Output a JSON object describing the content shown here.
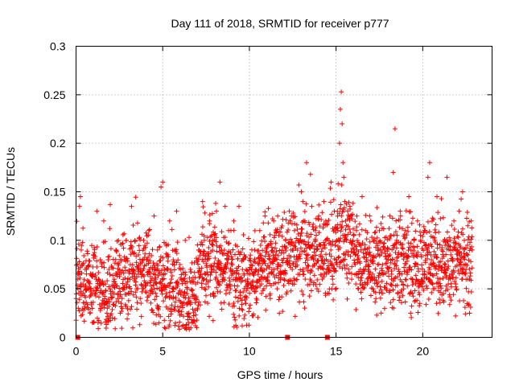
{
  "chart_data": {
    "type": "scatter",
    "title": "Day 111 of 2018, SRMTID for receiver p777",
    "xlabel": "GPS time / hours",
    "ylabel": "SRMTID / TECUs",
    "xlim": [
      0,
      24
    ],
    "ylim": [
      0,
      0.3
    ],
    "x_ticks": [
      0,
      5,
      10,
      15,
      20
    ],
    "x_tick_labels": [
      "0",
      "5",
      "10",
      "15",
      "20"
    ],
    "y_ticks": [
      0,
      0.05,
      0.1,
      0.15,
      0.2,
      0.25,
      0.3
    ],
    "y_tick_labels": [
      "0",
      "0.05",
      "0.1",
      "0.15",
      "0.2",
      "0.25",
      "0.3"
    ],
    "grid": true,
    "marker": "+",
    "color": "#ff0000",
    "series": [
      {
        "name": "SRMTID",
        "description": "dense cloud of roughly 2500 plus-markers, sampled every ~30 s; representative subset below",
        "points": [
          [
            0.0,
            0.04
          ],
          [
            0.1,
            0.06
          ],
          [
            0.2,
            0.135
          ],
          [
            0.25,
            0.145
          ],
          [
            0.3,
            0.09
          ],
          [
            0.4,
            0.055
          ],
          [
            0.5,
            0.03
          ],
          [
            0.6,
            0.07
          ],
          [
            0.7,
            0.05
          ],
          [
            0.8,
            0.025
          ],
          [
            0.9,
            0.065
          ],
          [
            1.0,
            0.085
          ],
          [
            1.1,
            0.045
          ],
          [
            1.2,
            0.13
          ],
          [
            1.3,
            0.06
          ],
          [
            1.4,
            0.08
          ],
          [
            1.5,
            0.035
          ],
          [
            1.6,
            0.12
          ],
          [
            1.7,
            0.055
          ],
          [
            1.8,
            0.03
          ],
          [
            1.9,
            0.07
          ],
          [
            2.0,
            0.045
          ],
          [
            2.1,
            0.02
          ],
          [
            2.2,
            0.06
          ],
          [
            2.3,
            0.09
          ],
          [
            2.4,
            0.04
          ],
          [
            2.5,
            0.065
          ],
          [
            2.6,
            0.035
          ],
          [
            2.7,
            0.05
          ],
          [
            2.8,
            0.08
          ],
          [
            2.9,
            0.1
          ],
          [
            3.0,
            0.06
          ],
          [
            3.1,
            0.045
          ],
          [
            3.2,
            0.135
          ],
          [
            3.3,
            0.07
          ],
          [
            3.4,
            0.1
          ],
          [
            3.5,
            0.05
          ],
          [
            3.6,
            0.085
          ],
          [
            3.7,
            0.04
          ],
          [
            3.8,
            0.065
          ],
          [
            3.9,
            0.1
          ],
          [
            4.0,
            0.055
          ],
          [
            4.1,
            0.08
          ],
          [
            4.2,
            0.11
          ],
          [
            4.3,
            0.045
          ],
          [
            4.4,
            0.07
          ],
          [
            4.5,
            0.125
          ],
          [
            4.6,
            0.06
          ],
          [
            4.7,
            0.09
          ],
          [
            4.8,
            0.05
          ],
          [
            4.9,
            0.155
          ],
          [
            5.0,
            0.16
          ],
          [
            5.1,
            0.07
          ],
          [
            5.2,
            0.045
          ],
          [
            5.3,
            0.085
          ],
          [
            5.4,
            0.12
          ],
          [
            5.5,
            0.06
          ],
          [
            5.6,
            0.04
          ],
          [
            5.7,
            0.09
          ],
          [
            5.8,
            0.13
          ],
          [
            5.9,
            0.055
          ],
          [
            6.0,
            0.075
          ],
          [
            6.1,
            0.035
          ],
          [
            6.2,
            0.06
          ],
          [
            6.3,
            0.1
          ],
          [
            6.4,
            0.045
          ],
          [
            6.5,
            0.025
          ],
          [
            6.6,
            0.07
          ],
          [
            6.7,
            0.015
          ],
          [
            6.8,
            0.04
          ],
          [
            6.9,
            0.055
          ],
          [
            7.0,
            0.03
          ],
          [
            7.1,
            0.09
          ],
          [
            7.2,
            0.065
          ],
          [
            7.3,
            0.14
          ],
          [
            7.4,
            0.1
          ],
          [
            7.5,
            0.055
          ],
          [
            7.6,
            0.08
          ],
          [
            7.7,
            0.12
          ],
          [
            7.8,
            0.07
          ],
          [
            7.9,
            0.045
          ],
          [
            8.0,
            0.105
          ],
          [
            8.1,
            0.13
          ],
          [
            8.2,
            0.075
          ],
          [
            8.3,
            0.16
          ],
          [
            8.4,
            0.09
          ],
          [
            8.5,
            0.06
          ],
          [
            8.6,
            0.135
          ],
          [
            8.7,
            0.08
          ],
          [
            8.8,
            0.11
          ],
          [
            8.9,
            0.05
          ],
          [
            9.0,
            0.075
          ],
          [
            9.1,
            0.12
          ],
          [
            9.2,
            0.095
          ],
          [
            9.3,
            0.06
          ],
          [
            9.4,
            0.135
          ],
          [
            9.5,
            0.04
          ],
          [
            9.6,
            0.07
          ],
          [
            9.7,
            0.085
          ],
          [
            9.8,
            0.035
          ],
          [
            9.9,
            0.06
          ],
          [
            10.0,
            0.03
          ],
          [
            10.1,
            0.075
          ],
          [
            10.2,
            0.05
          ],
          [
            10.3,
            0.09
          ],
          [
            10.4,
            0.04
          ],
          [
            10.5,
            0.065
          ],
          [
            10.6,
            0.11
          ],
          [
            10.7,
            0.055
          ],
          [
            10.8,
            0.08
          ],
          [
            10.9,
            0.125
          ],
          [
            11.0,
            0.06
          ],
          [
            11.1,
            0.095
          ],
          [
            11.2,
            0.045
          ],
          [
            11.3,
            0.07
          ],
          [
            11.4,
            0.12
          ],
          [
            11.5,
            0.085
          ],
          [
            11.6,
            0.05
          ],
          [
            11.7,
            0.105
          ],
          [
            11.8,
            0.065
          ],
          [
            11.9,
            0.09
          ],
          [
            12.0,
            0.06
          ],
          [
            12.1,
            0.1
          ],
          [
            12.2,
            0.075
          ],
          [
            12.3,
            0.13
          ],
          [
            12.4,
            0.09
          ],
          [
            12.5,
            0.055
          ],
          [
            12.6,
            0.11
          ],
          [
            12.7,
            0.08
          ],
          [
            12.8,
            0.065
          ],
          [
            12.9,
            0.1
          ],
          [
            13.0,
            0.15
          ],
          [
            13.1,
            0.07
          ],
          [
            13.2,
            0.12
          ],
          [
            13.3,
            0.18
          ],
          [
            13.4,
            0.095
          ],
          [
            13.5,
            0.06
          ],
          [
            13.6,
            0.135
          ],
          [
            13.7,
            0.08
          ],
          [
            13.8,
            0.11
          ],
          [
            13.9,
            0.05
          ],
          [
            14.0,
            0.125
          ],
          [
            14.1,
            0.085
          ],
          [
            14.2,
            0.06
          ],
          [
            14.3,
            0.14
          ],
          [
            14.4,
            0.1
          ],
          [
            14.5,
            0.07
          ],
          [
            14.6,
            0.045
          ],
          [
            14.7,
            0.09
          ],
          [
            14.8,
            0.06
          ],
          [
            14.9,
            0.13
          ],
          [
            15.0,
            0.08
          ],
          [
            15.1,
            0.11
          ],
          [
            15.2,
            0.2
          ],
          [
            15.25,
            0.235
          ],
          [
            15.3,
            0.253
          ],
          [
            15.35,
            0.22
          ],
          [
            15.4,
            0.18
          ],
          [
            15.45,
            0.165
          ],
          [
            15.5,
            0.14
          ],
          [
            15.55,
            0.12
          ],
          [
            15.6,
            0.1
          ],
          [
            15.7,
            0.085
          ],
          [
            15.8,
            0.135
          ],
          [
            15.9,
            0.06
          ],
          [
            16.0,
            0.105
          ],
          [
            16.1,
            0.075
          ],
          [
            16.2,
            0.125
          ],
          [
            16.3,
            0.05
          ],
          [
            16.4,
            0.095
          ],
          [
            16.5,
            0.145
          ],
          [
            16.6,
            0.07
          ],
          [
            16.7,
            0.11
          ],
          [
            16.8,
            0.055
          ],
          [
            16.9,
            0.085
          ],
          [
            17.0,
            0.12
          ],
          [
            17.1,
            0.06
          ],
          [
            17.2,
            0.1
          ],
          [
            17.3,
            0.04
          ],
          [
            17.4,
            0.075
          ],
          [
            17.5,
            0.11
          ],
          [
            17.6,
            0.025
          ],
          [
            17.7,
            0.065
          ],
          [
            17.8,
            0.09
          ],
          [
            17.9,
            0.05
          ],
          [
            18.0,
            0.08
          ],
          [
            18.1,
            0.125
          ],
          [
            18.2,
            0.06
          ],
          [
            18.3,
            0.17
          ],
          [
            18.4,
            0.215
          ],
          [
            18.5,
            0.1
          ],
          [
            18.6,
            0.07
          ],
          [
            18.7,
            0.13
          ],
          [
            18.8,
            0.085
          ],
          [
            18.9,
            0.05
          ],
          [
            19.0,
            0.11
          ],
          [
            19.1,
            0.065
          ],
          [
            19.2,
            0.145
          ],
          [
            19.3,
            0.09
          ],
          [
            19.4,
            0.06
          ],
          [
            19.5,
            0.1
          ],
          [
            19.6,
            0.075
          ],
          [
            19.7,
            0.12
          ],
          [
            19.8,
            0.055
          ],
          [
            19.9,
            0.085
          ],
          [
            20.0,
            0.065
          ],
          [
            20.1,
            0.11
          ],
          [
            20.2,
            0.095
          ],
          [
            20.3,
            0.165
          ],
          [
            20.4,
            0.18
          ],
          [
            20.5,
            0.08
          ],
          [
            20.6,
            0.05
          ],
          [
            20.7,
            0.1
          ],
          [
            20.8,
            0.035
          ],
          [
            20.9,
            0.07
          ],
          [
            21.0,
            0.06
          ],
          [
            21.1,
            0.09
          ],
          [
            21.2,
            0.045
          ],
          [
            21.3,
            0.075
          ],
          [
            21.4,
            0.165
          ],
          [
            21.5,
            0.06
          ],
          [
            21.6,
            0.1
          ],
          [
            21.7,
            0.08
          ],
          [
            21.8,
            0.12
          ],
          [
            21.9,
            0.055
          ],
          [
            22.0,
            0.09
          ],
          [
            22.1,
            0.13
          ],
          [
            22.2,
            0.075
          ],
          [
            22.3,
            0.15
          ],
          [
            22.4,
            0.1
          ],
          [
            22.5,
            0.07
          ],
          [
            22.6,
            0.115
          ],
          [
            22.7,
            0.06
          ],
          [
            22.8,
            0.12
          ],
          [
            22.85,
            0.09
          ]
        ]
      },
      {
        "name": "zero-markers",
        "description": "small filled squares on the x axis",
        "points": [
          [
            0.1,
            0.0
          ],
          [
            12.2,
            0.0
          ],
          [
            14.5,
            0.0
          ]
        ]
      }
    ]
  }
}
